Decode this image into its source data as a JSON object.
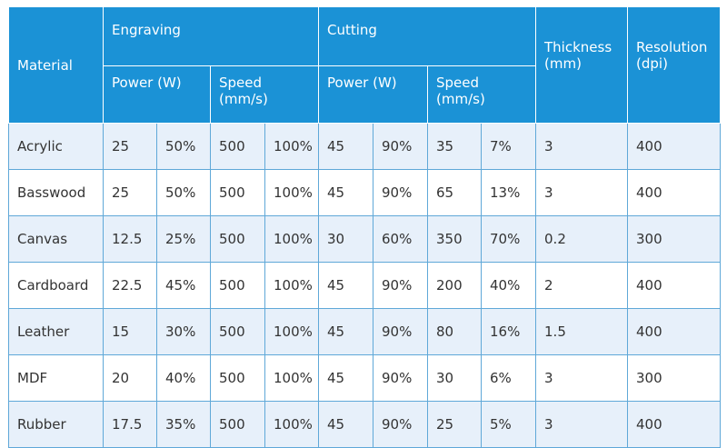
{
  "headers": {
    "material": "Material",
    "engraving": "Engraving",
    "cutting": "Cutting",
    "thickness": "Thickness (mm)",
    "resolution": "Resolution (dpi)",
    "engr_power": "Power (W)",
    "engr_speed": "Speed (mm/s)",
    "cut_power": "Power (W)",
    "cut_speed": "Speed (mm/s)"
  },
  "rows": [
    {
      "material": "Acrylic",
      "cells": [
        "25",
        "50%",
        "500",
        "100%",
        "45",
        "90%",
        "35",
        "7%",
        "3",
        "400"
      ]
    },
    {
      "material": "Basswood",
      "cells": [
        "25",
        "50%",
        "500",
        "100%",
        "45",
        "90%",
        "65",
        "13%",
        "3",
        "400"
      ]
    },
    {
      "material": "Canvas",
      "cells": [
        "12.5",
        "25%",
        "500",
        "100%",
        "30",
        "60%",
        "350",
        "70%",
        "0.2",
        "300"
      ]
    },
    {
      "material": "Cardboard",
      "cells": [
        "22.5",
        "45%",
        "500",
        "100%",
        "45",
        "90%",
        "200",
        "40%",
        "2",
        "400"
      ]
    },
    {
      "material": "Leather",
      "cells": [
        "15",
        "30%",
        "500",
        "100%",
        "45",
        "90%",
        "80",
        "16%",
        "1.5",
        "400"
      ]
    },
    {
      "material": "MDF",
      "cells": [
        "20",
        "40%",
        "500",
        "100%",
        "45",
        "90%",
        "30",
        "6%",
        "3",
        "300"
      ]
    },
    {
      "material": "Rubber",
      "cells": [
        "17.5",
        "35%",
        "500",
        "100%",
        "45",
        "90%",
        "25",
        "5%",
        "3",
        "400"
      ]
    }
  ],
  "colors": {
    "header_bg": "#1b92d6",
    "header_text": "#ffffff",
    "row_alt_bg": "#e7f0fa",
    "border": "#5fa8d8"
  }
}
